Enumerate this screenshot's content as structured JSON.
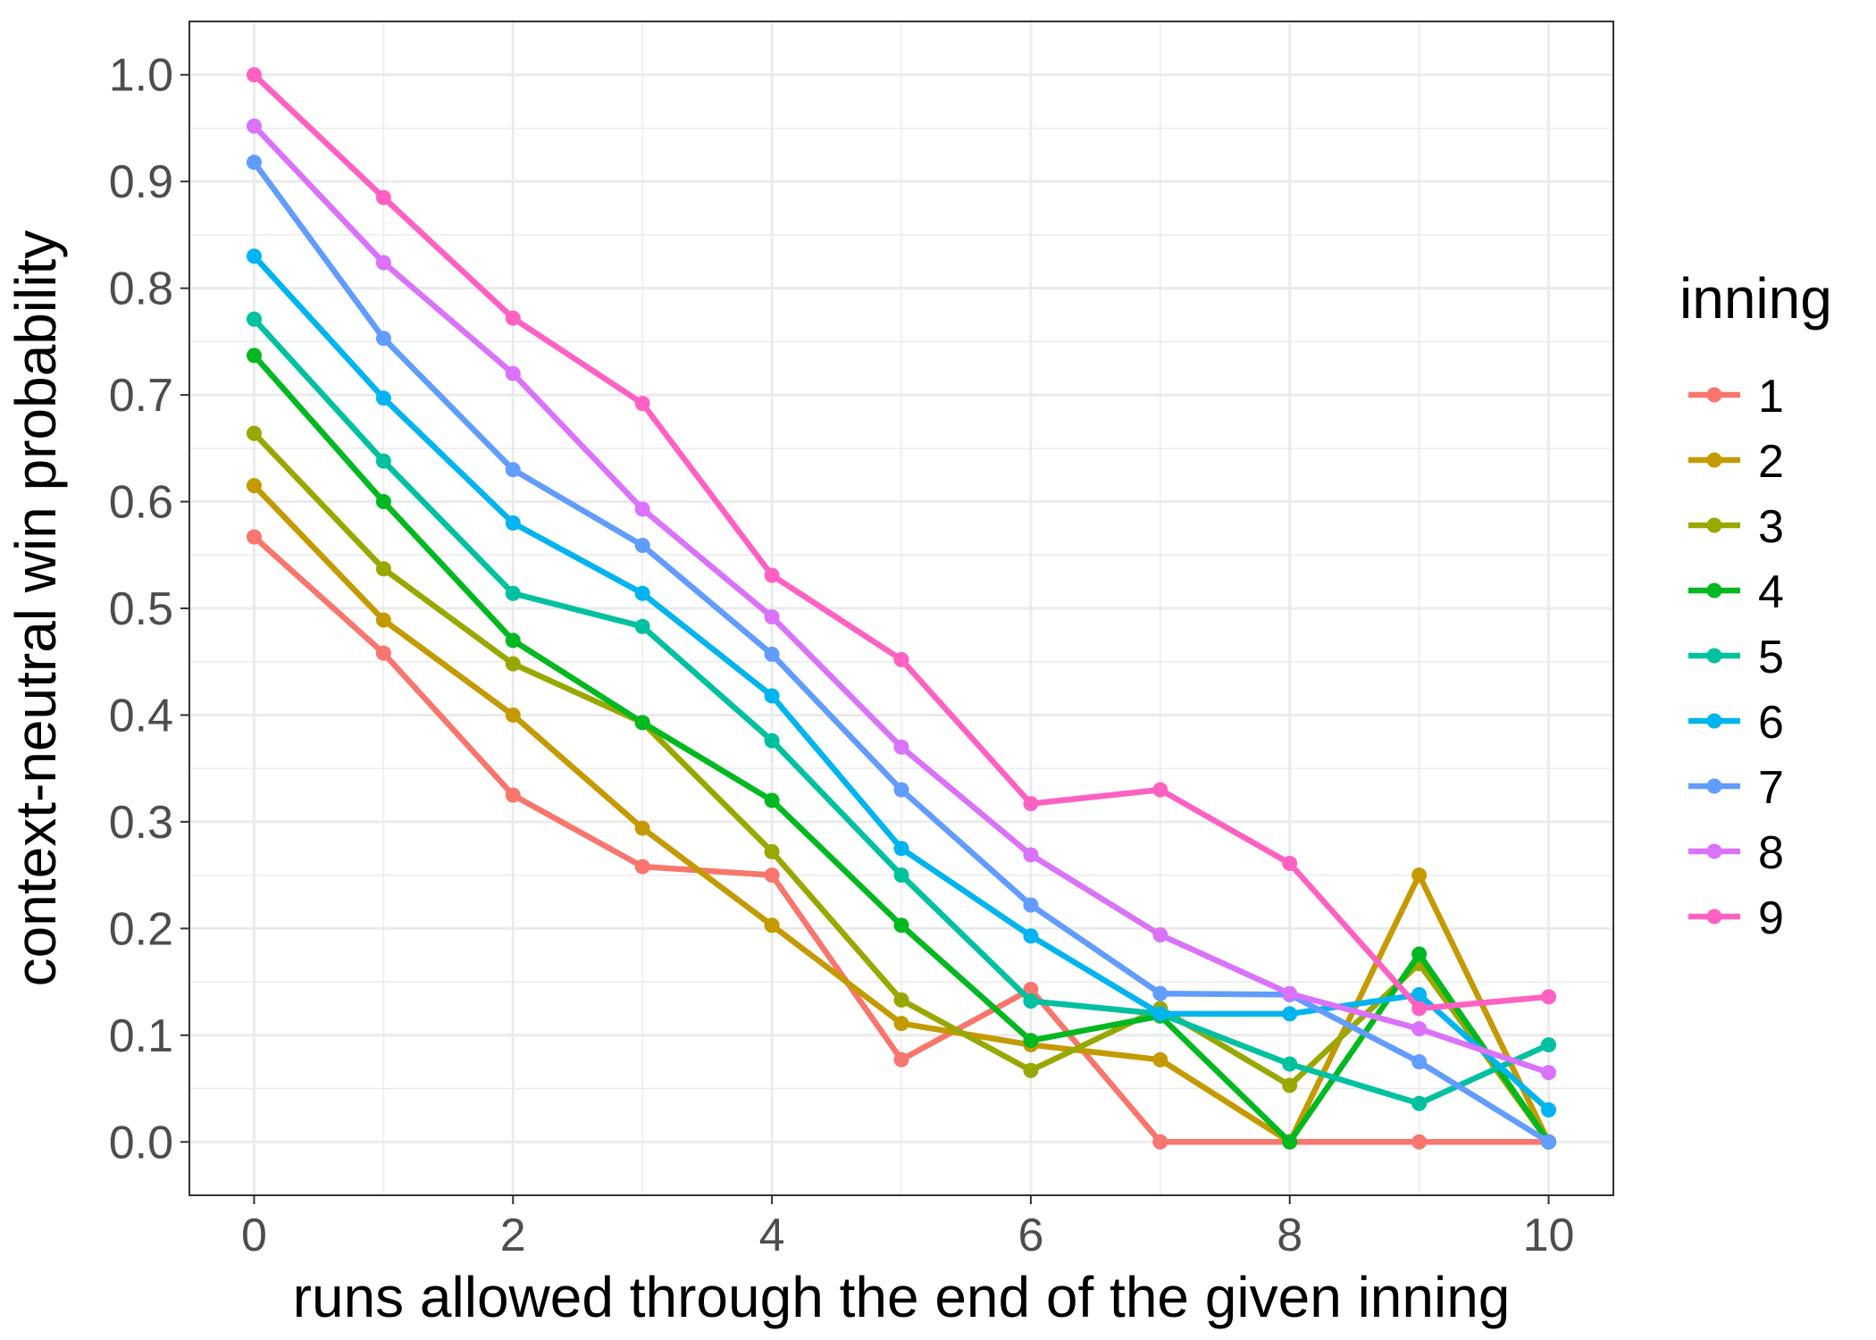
{
  "chart_data": {
    "type": "line",
    "title": "",
    "xlabel": "runs allowed through the end of the given inning",
    "ylabel": "context-neutral win probability",
    "xlim": [
      -0.5,
      10.5
    ],
    "ylim": [
      -0.05,
      1.05
    ],
    "x_ticks": [
      0,
      2,
      4,
      6,
      8,
      10
    ],
    "x_tick_labels": [
      "0",
      "2",
      "4",
      "6",
      "8",
      "10"
    ],
    "y_ticks": [
      0,
      0.1,
      0.2,
      0.3,
      0.4,
      0.5,
      0.6,
      0.7,
      0.8,
      0.9,
      1.0
    ],
    "y_tick_labels": [
      "0.0",
      "0.1",
      "0.2",
      "0.3",
      "0.4",
      "0.5",
      "0.6",
      "0.7",
      "0.8",
      "0.9",
      "1.0"
    ],
    "grid": true,
    "legend": {
      "title": "inning",
      "position": "right"
    },
    "x": [
      0,
      1,
      2,
      3,
      4,
      5,
      6,
      7,
      8,
      9,
      10
    ],
    "series": [
      {
        "name": "1",
        "color": "#F8766D",
        "values": [
          0.567,
          0.458,
          0.325,
          0.258,
          0.25,
          0.077,
          0.143,
          0.0,
          0.0,
          0.0,
          0.0
        ]
      },
      {
        "name": "2",
        "color": "#C49A00",
        "values": [
          0.615,
          0.489,
          0.4,
          0.294,
          0.203,
          0.111,
          0.091,
          0.077,
          0.0,
          0.25,
          0.0
        ]
      },
      {
        "name": "3",
        "color": "#99A800",
        "values": [
          0.664,
          0.537,
          0.448,
          0.393,
          0.272,
          0.133,
          0.067,
          0.125,
          0.053,
          0.167,
          0.0
        ]
      },
      {
        "name": "4",
        "color": "#00B81F",
        "values": [
          0.737,
          0.6,
          0.47,
          0.393,
          0.32,
          0.203,
          0.095,
          0.118,
          0.0,
          0.176,
          0.0
        ]
      },
      {
        "name": "5",
        "color": "#00C19F",
        "values": [
          0.771,
          0.638,
          0.514,
          0.483,
          0.376,
          0.25,
          0.132,
          0.12,
          0.073,
          0.036,
          0.091
        ]
      },
      {
        "name": "6",
        "color": "#00B4EF",
        "values": [
          0.83,
          0.697,
          0.58,
          0.514,
          0.418,
          0.275,
          0.193,
          0.12,
          0.12,
          0.138,
          0.03
        ]
      },
      {
        "name": "7",
        "color": "#619CFF",
        "values": [
          0.918,
          0.753,
          0.63,
          0.559,
          0.457,
          0.33,
          0.222,
          0.139,
          0.138,
          0.075,
          0.0
        ]
      },
      {
        "name": "8",
        "color": "#DB72FB",
        "values": [
          0.952,
          0.824,
          0.72,
          0.593,
          0.492,
          0.37,
          0.269,
          0.194,
          0.139,
          0.106,
          0.065
        ]
      },
      {
        "name": "9",
        "color": "#FF61C3",
        "values": [
          1.0,
          0.885,
          0.772,
          0.692,
          0.531,
          0.452,
          0.317,
          0.33,
          0.261,
          0.125,
          0.136
        ]
      }
    ]
  }
}
